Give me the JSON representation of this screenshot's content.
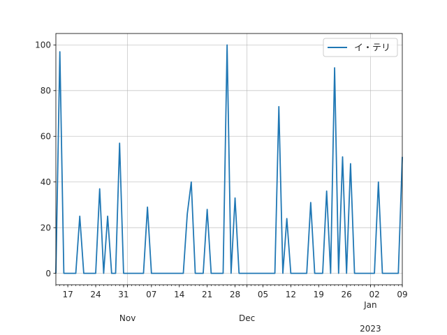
{
  "chart_data": {
    "type": "line",
    "title": "",
    "xlabel": "",
    "ylabel": "",
    "grid": true,
    "legend_position": "top-right",
    "x_range": [
      "2022-10-14",
      "2023-01-09"
    ],
    "ylim": [
      -5,
      105
    ],
    "y_ticks": [
      0,
      20,
      40,
      60,
      80,
      100
    ],
    "x_ticks": [
      {
        "date": "2022-10-17",
        "label": "17"
      },
      {
        "date": "2022-10-24",
        "label": "24"
      },
      {
        "date": "2022-10-31",
        "label": "31"
      },
      {
        "date": "2022-11-07",
        "label": "07"
      },
      {
        "date": "2022-11-14",
        "label": "14"
      },
      {
        "date": "2022-11-21",
        "label": "21"
      },
      {
        "date": "2022-11-28",
        "label": "28"
      },
      {
        "date": "2022-12-05",
        "label": "05"
      },
      {
        "date": "2022-12-12",
        "label": "12"
      },
      {
        "date": "2022-12-19",
        "label": "19"
      },
      {
        "date": "2022-12-26",
        "label": "26"
      },
      {
        "date": "2023-01-02",
        "label": "02"
      },
      {
        "date": "2023-01-09",
        "label": "09"
      }
    ],
    "month_labels": [
      {
        "date": "2022-11-01",
        "label": "Nov"
      },
      {
        "date": "2022-12-01",
        "label": "Dec"
      },
      {
        "date": "2023-01-01",
        "label": "Jan",
        "year": "2023"
      }
    ],
    "series": [
      {
        "name": "イ・テリ",
        "color": "#1f77b4",
        "points": [
          [
            "2022-10-14",
            0
          ],
          [
            "2022-10-15",
            97
          ],
          [
            "2022-10-16",
            0
          ],
          [
            "2022-10-17",
            0
          ],
          [
            "2022-10-18",
            0
          ],
          [
            "2022-10-19",
            0
          ],
          [
            "2022-10-20",
            25
          ],
          [
            "2022-10-21",
            0
          ],
          [
            "2022-10-22",
            0
          ],
          [
            "2022-10-23",
            0
          ],
          [
            "2022-10-24",
            0
          ],
          [
            "2022-10-25",
            37
          ],
          [
            "2022-10-26",
            0
          ],
          [
            "2022-10-27",
            25
          ],
          [
            "2022-10-28",
            0
          ],
          [
            "2022-10-29",
            0
          ],
          [
            "2022-10-30",
            57
          ],
          [
            "2022-10-31",
            0
          ],
          [
            "2022-11-01",
            0
          ],
          [
            "2022-11-02",
            0
          ],
          [
            "2022-11-03",
            0
          ],
          [
            "2022-11-04",
            0
          ],
          [
            "2022-11-05",
            0
          ],
          [
            "2022-11-06",
            29
          ],
          [
            "2022-11-07",
            0
          ],
          [
            "2022-11-08",
            0
          ],
          [
            "2022-11-09",
            0
          ],
          [
            "2022-11-10",
            0
          ],
          [
            "2022-11-11",
            0
          ],
          [
            "2022-11-12",
            0
          ],
          [
            "2022-11-13",
            0
          ],
          [
            "2022-11-14",
            0
          ],
          [
            "2022-11-15",
            0
          ],
          [
            "2022-11-16",
            26
          ],
          [
            "2022-11-17",
            40
          ],
          [
            "2022-11-18",
            0
          ],
          [
            "2022-11-19",
            0
          ],
          [
            "2022-11-20",
            0
          ],
          [
            "2022-11-21",
            28
          ],
          [
            "2022-11-22",
            0
          ],
          [
            "2022-11-23",
            0
          ],
          [
            "2022-11-24",
            0
          ],
          [
            "2022-11-25",
            0
          ],
          [
            "2022-11-26",
            100
          ],
          [
            "2022-11-27",
            0
          ],
          [
            "2022-11-28",
            33
          ],
          [
            "2022-11-29",
            0
          ],
          [
            "2022-11-30",
            0
          ],
          [
            "2022-12-01",
            0
          ],
          [
            "2022-12-02",
            0
          ],
          [
            "2022-12-03",
            0
          ],
          [
            "2022-12-04",
            0
          ],
          [
            "2022-12-05",
            0
          ],
          [
            "2022-12-06",
            0
          ],
          [
            "2022-12-07",
            0
          ],
          [
            "2022-12-08",
            0
          ],
          [
            "2022-12-09",
            73
          ],
          [
            "2022-12-10",
            0
          ],
          [
            "2022-12-11",
            24
          ],
          [
            "2022-12-12",
            0
          ],
          [
            "2022-12-13",
            0
          ],
          [
            "2022-12-14",
            0
          ],
          [
            "2022-12-15",
            0
          ],
          [
            "2022-12-16",
            0
          ],
          [
            "2022-12-17",
            31
          ],
          [
            "2022-12-18",
            0
          ],
          [
            "2022-12-19",
            0
          ],
          [
            "2022-12-20",
            0
          ],
          [
            "2022-12-21",
            36
          ],
          [
            "2022-12-22",
            0
          ],
          [
            "2022-12-23",
            90
          ],
          [
            "2022-12-24",
            0
          ],
          [
            "2022-12-25",
            51
          ],
          [
            "2022-12-26",
            0
          ],
          [
            "2022-12-27",
            48
          ],
          [
            "2022-12-28",
            0
          ],
          [
            "2022-12-29",
            0
          ],
          [
            "2022-12-30",
            0
          ],
          [
            "2022-12-31",
            0
          ],
          [
            "2023-01-01",
            0
          ],
          [
            "2023-01-02",
            0
          ],
          [
            "2023-01-03",
            40
          ],
          [
            "2023-01-04",
            0
          ],
          [
            "2023-01-05",
            0
          ],
          [
            "2023-01-06",
            0
          ],
          [
            "2023-01-07",
            0
          ],
          [
            "2023-01-08",
            0
          ],
          [
            "2023-01-09",
            51
          ]
        ]
      }
    ]
  }
}
